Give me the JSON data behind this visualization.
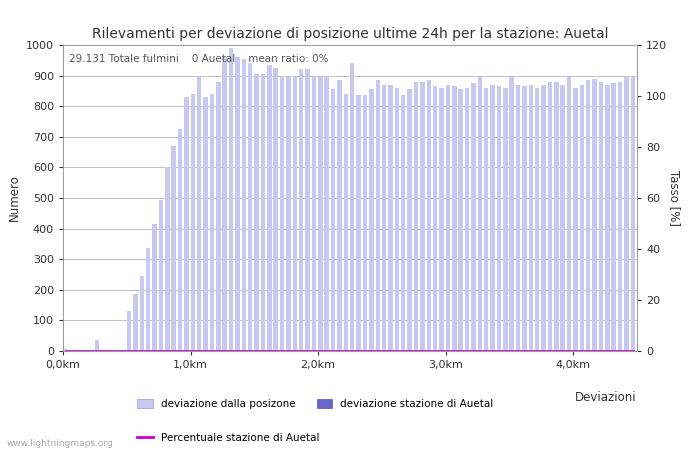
{
  "title": "Rilevamenti per deviazione di posizione ultime 24h per la stazione: Auetal",
  "subtitle": "29.131 Totale fulmini    0 Auetal    mean ratio: 0%",
  "xlabel": "Deviazioni",
  "ylabel_left": "Numero",
  "ylabel_right": "Tasso [%]",
  "watermark": "www.lightningmaps.org",
  "xtick_labels": [
    "0,0km",
    "1,0km",
    "2,0km",
    "3,0km",
    "4,0km"
  ],
  "ylim_left": [
    0,
    1000
  ],
  "ylim_right": [
    0,
    120
  ],
  "yticks_left": [
    0,
    100,
    200,
    300,
    400,
    500,
    600,
    700,
    800,
    900,
    1000
  ],
  "yticks_right": [
    0,
    20,
    40,
    60,
    80,
    100,
    120
  ],
  "bar_color": "#c8c8f0",
  "bar_color_station": "#6666cc",
  "line_color": "#cc00cc",
  "bar_values": [
    5,
    2,
    2,
    2,
    2,
    35,
    2,
    2,
    2,
    2,
    130,
    185,
    245,
    335,
    415,
    495,
    600,
    670,
    725,
    830,
    840,
    900,
    830,
    840,
    880,
    960,
    990,
    960,
    955,
    940,
    905,
    905,
    935,
    925,
    900,
    895,
    900,
    920,
    920,
    900,
    895,
    900,
    855,
    885,
    840,
    940,
    835,
    835,
    855,
    885,
    870,
    870,
    860,
    835,
    855,
    880,
    880,
    885,
    865,
    860,
    870,
    865,
    855,
    860,
    875,
    895,
    860,
    870,
    865,
    860,
    895,
    870,
    865,
    870,
    860,
    870,
    880,
    880,
    870,
    895,
    860,
    870,
    885,
    890,
    880,
    870,
    875,
    880,
    895,
    895
  ],
  "station_values": [
    0,
    0,
    0,
    0,
    0,
    0,
    0,
    0,
    0,
    0,
    0,
    0,
    0,
    0,
    0,
    0,
    0,
    0,
    0,
    0,
    0,
    0,
    0,
    0,
    0,
    0,
    0,
    0,
    0,
    0,
    0,
    0,
    0,
    0,
    0,
    0,
    0,
    0,
    0,
    0,
    0,
    0,
    0,
    0,
    0,
    0,
    0,
    0,
    0,
    0,
    0,
    0,
    0,
    0,
    0,
    0,
    0,
    0,
    0,
    0,
    0,
    0,
    0,
    0,
    0,
    0,
    0,
    0,
    0,
    0,
    0,
    0,
    0,
    0,
    0,
    0,
    0,
    0,
    0,
    0,
    0,
    0,
    0,
    0,
    0,
    0,
    0,
    0,
    0,
    0
  ],
  "ratio_values": [
    0,
    0,
    0,
    0,
    0,
    0,
    0,
    0,
    0,
    0,
    0,
    0,
    0,
    0,
    0,
    0,
    0,
    0,
    0,
    0,
    0,
    0,
    0,
    0,
    0,
    0,
    0,
    0,
    0,
    0,
    0,
    0,
    0,
    0,
    0,
    0,
    0,
    0,
    0,
    0,
    0,
    0,
    0,
    0,
    0,
    0,
    0,
    0,
    0,
    0,
    0,
    0,
    0,
    0,
    0,
    0,
    0,
    0,
    0,
    0,
    0,
    0,
    0,
    0,
    0,
    0,
    0,
    0,
    0,
    0,
    0,
    0,
    0,
    0,
    0,
    0,
    0,
    0,
    0,
    0,
    0,
    0,
    0,
    0,
    0,
    0,
    0,
    0,
    0,
    0
  ],
  "legend_label_bar": "deviazione dalla posizone",
  "legend_label_station": "deviazione stazione di Auetal",
  "legend_label_line": "Percentuale stazione di Auetal",
  "bg_color": "#ffffff",
  "grid_color": "#aaaaaa",
  "title_fontsize": 10,
  "label_fontsize": 8.5,
  "tick_fontsize": 8,
  "n_bars": 90,
  "km_per_bar": 0.05,
  "xtick_km": [
    0.0,
    1.0,
    2.0,
    3.0,
    4.0
  ]
}
